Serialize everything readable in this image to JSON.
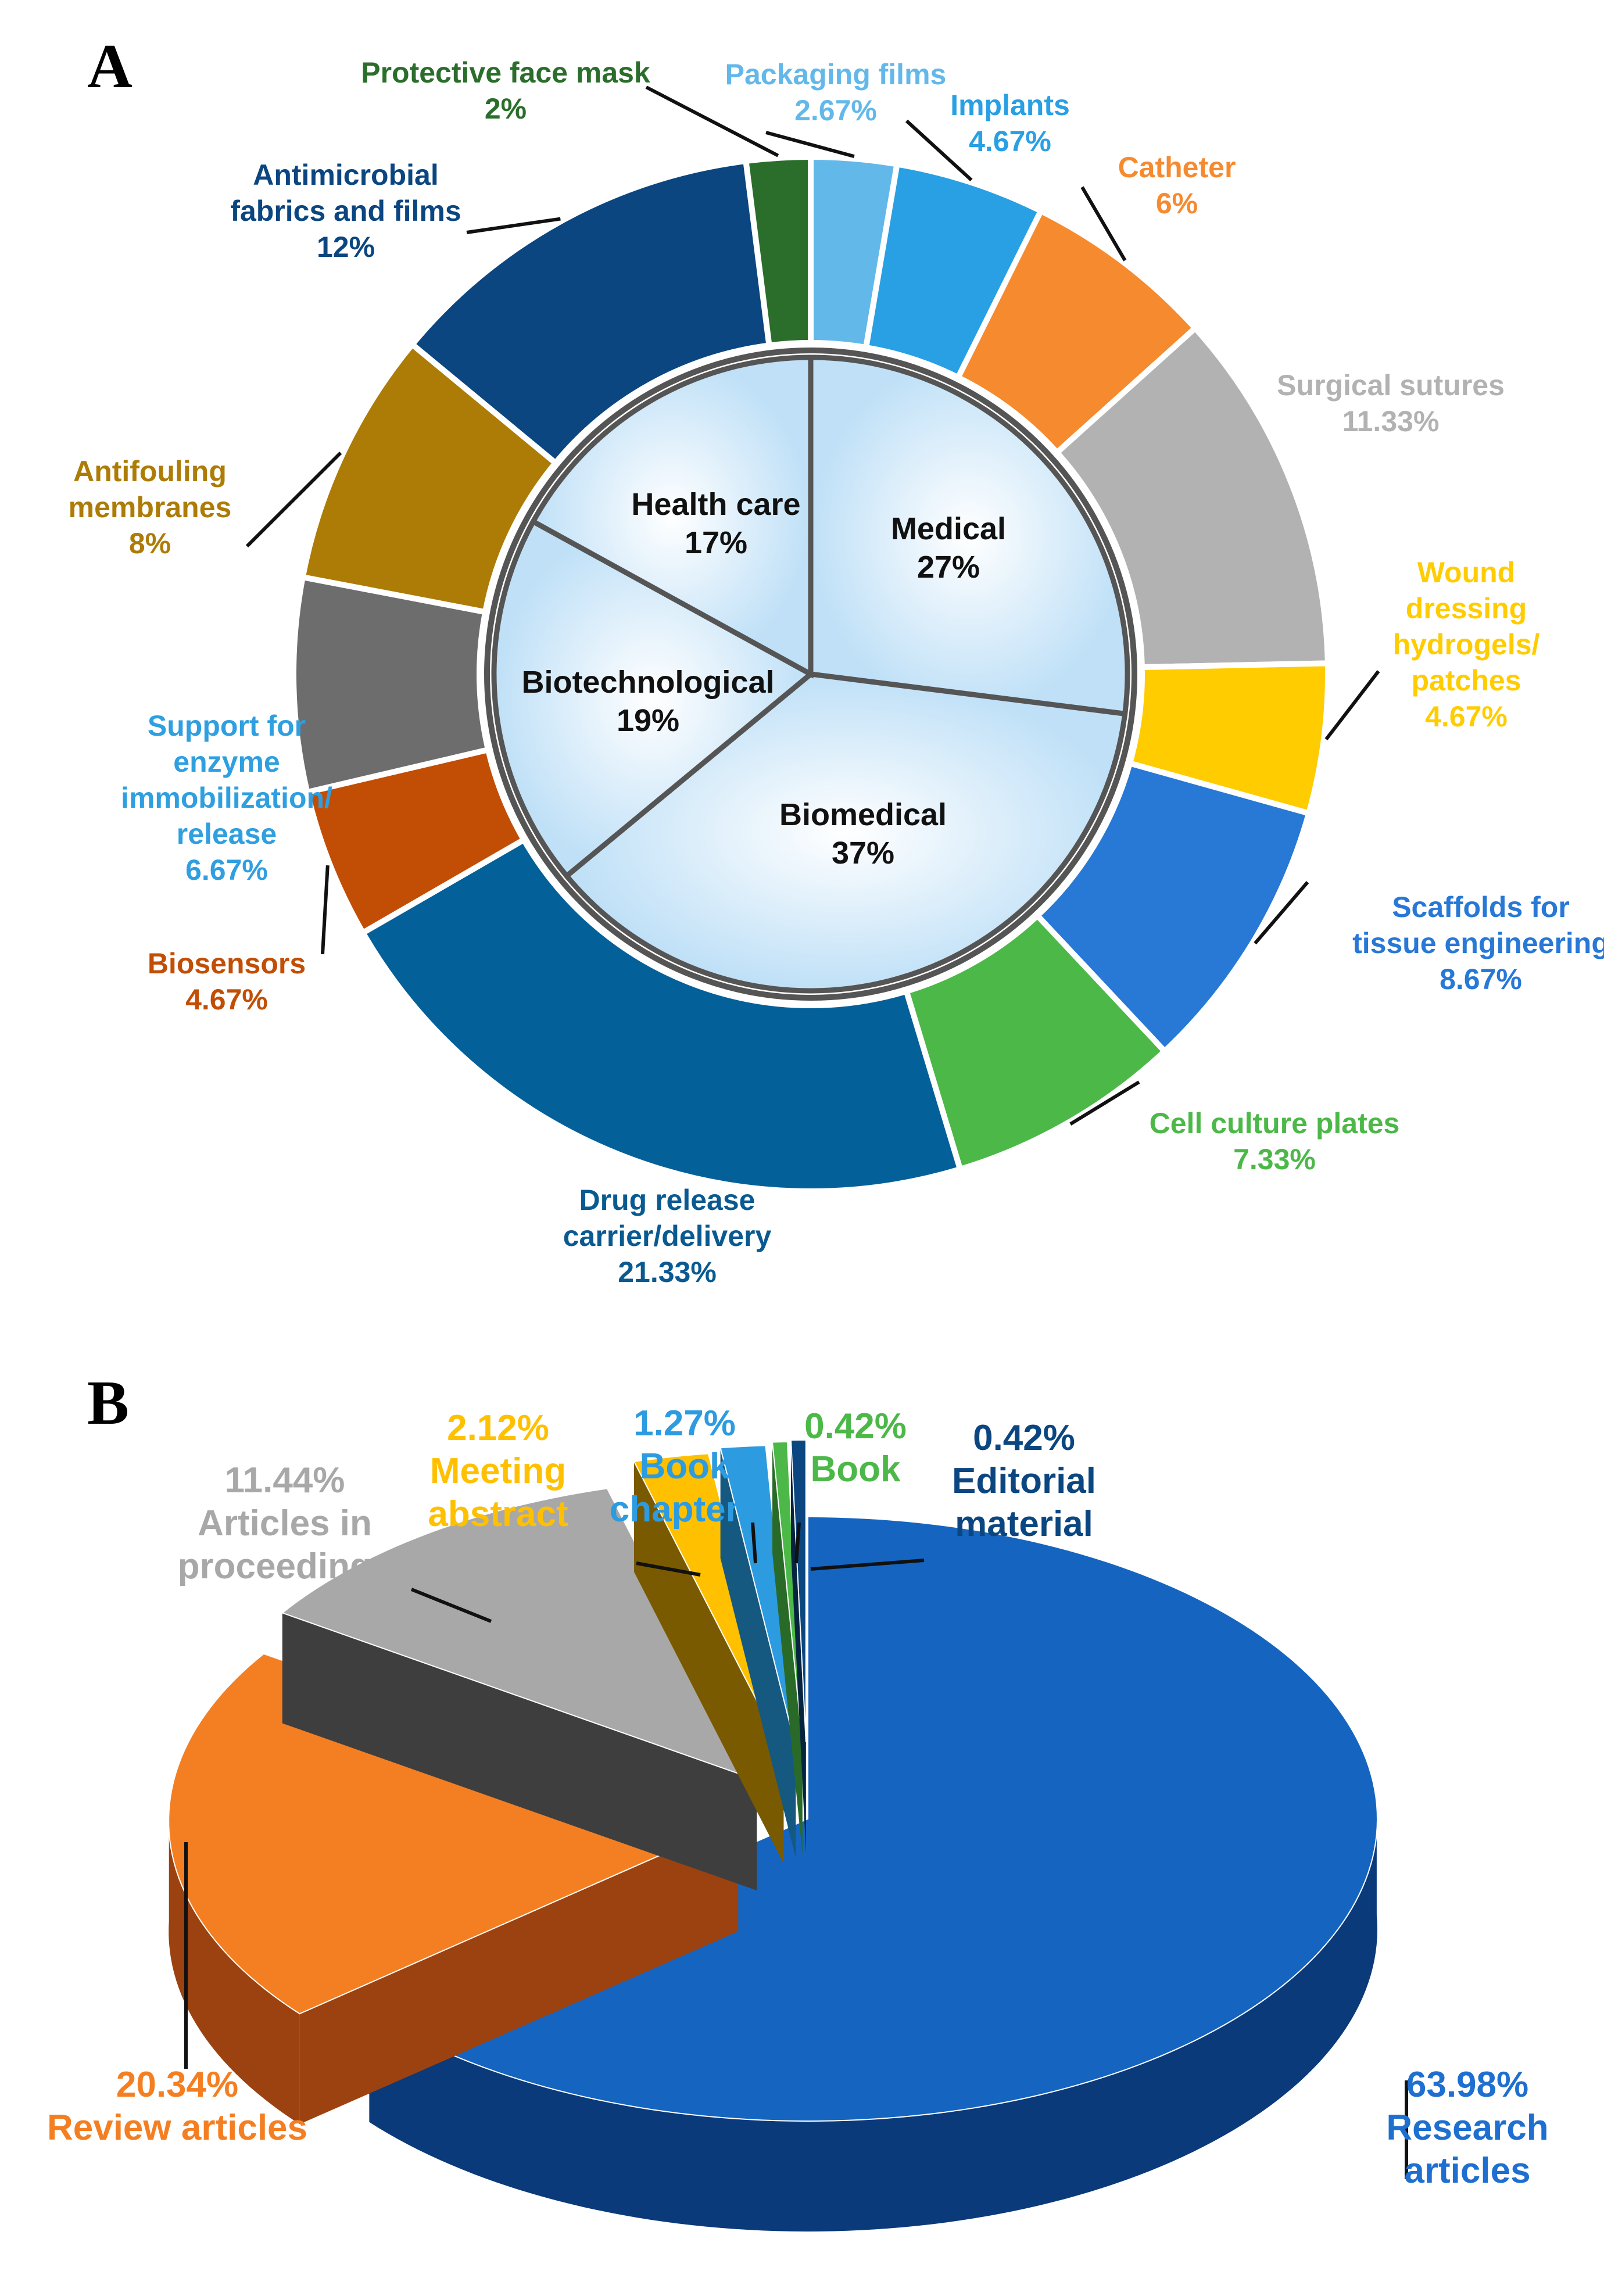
{
  "panels": {
    "a": "A",
    "b": "B"
  },
  "chart_data": [
    {
      "type": "pie",
      "variant": "donut-with-inner-pie",
      "panel": "A",
      "outer": [
        {
          "name": "Packaging films",
          "value": 2.67,
          "label": "2.67%",
          "color": "#63b8ea"
        },
        {
          "name": "Implants",
          "value": 4.67,
          "label": "4.67%",
          "color": "#28a0e3"
        },
        {
          "name": "Catheter",
          "value": 6,
          "label": "6%",
          "color": "#f68a2e"
        },
        {
          "name": "Surgical sutures",
          "value": 11.33,
          "label": "11.33%",
          "color": "#b2b2b2"
        },
        {
          "name": "Wound dressing hydrogels/ patches",
          "value": 4.67,
          "label": "4.67%",
          "color": "#ffcc00"
        },
        {
          "name": "Scaffolds for tissue engineering",
          "value": 8.67,
          "label": "8.67%",
          "color": "#2878d6"
        },
        {
          "name": "Cell culture plates",
          "value": 7.33,
          "label": "7.33%",
          "color": "#4cb848"
        },
        {
          "name": "Drug release carrier/delivery",
          "value": 21.33,
          "label": "21.33%",
          "color": "#046099"
        },
        {
          "name": "Biosensors",
          "value": 4.67,
          "label": "4.67%",
          "color": "#c24e06"
        },
        {
          "name": "Support for enzyme immobilization/ release",
          "value": 6.67,
          "label": "6.67%",
          "color": "#6d6d6d"
        },
        {
          "name": "Antifouling membranes",
          "value": 8,
          "label": "8%",
          "color": "#ad7c06"
        },
        {
          "name": "Antimicrobial fabrics and films",
          "value": 12,
          "label": "12%",
          "color": "#0b4680"
        },
        {
          "name": "Protective face mask",
          "value": 2,
          "label": "2%",
          "color": "#2b6e2b"
        }
      ],
      "inner": [
        {
          "name": "Medical",
          "value": 27,
          "label": "27%"
        },
        {
          "name": "Biomedical",
          "value": 37,
          "label": "37%"
        },
        {
          "name": "Biotechnological",
          "value": 19,
          "label": "19%"
        },
        {
          "name": "Health care",
          "value": 17,
          "label": "17%"
        }
      ],
      "outer_labels": [
        {
          "lines": [
            "Packaging films",
            "2.67%"
          ],
          "color": "#63b8ea"
        },
        {
          "lines": [
            "Implants",
            "4.67%"
          ],
          "color": "#28a0e3"
        },
        {
          "lines": [
            "Catheter",
            "6%"
          ],
          "color": "#f68a2e"
        },
        {
          "lines": [
            "Surgical sutures",
            "11.33%"
          ],
          "color": "#b2b2b2"
        },
        {
          "lines": [
            "Wound",
            "dressing",
            "hydrogels/",
            "patches",
            "4.67%"
          ],
          "color": "#ffcc00"
        },
        {
          "lines": [
            "Scaffolds for",
            "tissue engineering",
            "8.67%"
          ],
          "color": "#2878d6"
        },
        {
          "lines": [
            "Cell culture plates",
            "7.33%"
          ],
          "color": "#4cb848"
        },
        {
          "lines": [
            "Drug release",
            "carrier/delivery",
            "21.33%"
          ],
          "color": "#0a5a92"
        },
        {
          "lines": [
            "Biosensors",
            "4.67%"
          ],
          "color": "#c24e06"
        },
        {
          "lines": [
            "Support for",
            "enzyme",
            "immobilization/",
            "release",
            "6.67%"
          ],
          "color": "#2f9fe0"
        },
        {
          "lines": [
            "Antifouling",
            "membranes",
            "8%"
          ],
          "color": "#ad7c06"
        },
        {
          "lines": [
            "Antimicrobial",
            "fabrics and films",
            "12%"
          ],
          "color": "#0b4680"
        },
        {
          "lines": [
            "Protective face mask",
            "2%"
          ],
          "color": "#2b6e2b"
        }
      ]
    },
    {
      "type": "pie",
      "variant": "3d-exploded",
      "panel": "B",
      "slices": [
        {
          "name": "Research articles",
          "value": 63.98,
          "label": "63.98%",
          "color": "#1565c0",
          "dark": "#0a3a7a",
          "text_color": "#1e6fd0"
        },
        {
          "name": "Review articles",
          "value": 20.34,
          "label": "20.34%",
          "color": "#f47f22",
          "dark": "#9c4210",
          "text_color": "#f47f22"
        },
        {
          "name": "Articles in proceedings",
          "value": 11.44,
          "label": "11.44%",
          "color": "#a8a8a8",
          "dark": "#3e3e3e",
          "text_color": "#a8a8a8"
        },
        {
          "name": "Meeting abstract",
          "value": 2.12,
          "label": "2.12%",
          "color": "#ffc000",
          "dark": "#7a5a00",
          "text_color": "#ffc000"
        },
        {
          "name": "Book chapters",
          "value": 1.27,
          "label": "1.27%",
          "color": "#2d9be0",
          "dark": "#155880",
          "text_color": "#2d9be0"
        },
        {
          "name": "Book",
          "value": 0.42,
          "label": "0.42%",
          "color": "#4cb848",
          "dark": "#2a6a28",
          "text_color": "#4cb848"
        },
        {
          "name": "Editorial material",
          "value": 0.42,
          "label": "0.42%",
          "color": "#0b4680",
          "dark": "#062440",
          "text_color": "#0b4680"
        }
      ],
      "slice_labels": [
        {
          "lines": [
            "63.98%",
            "Research",
            "articles"
          ],
          "color": "#1e6fd0"
        },
        {
          "lines": [
            "20.34%",
            "Review articles"
          ],
          "color": "#f47f22"
        },
        {
          "lines": [
            "11.44%",
            "Articles  in",
            "proceedings"
          ],
          "color": "#a8a8a8"
        },
        {
          "lines": [
            "2.12%",
            "Meeting",
            "abstract"
          ],
          "color": "#ffc000"
        },
        {
          "lines": [
            "1.27%",
            "Book",
            "chapters"
          ],
          "color": "#2d9be0"
        },
        {
          "lines": [
            "0.42%",
            "Book"
          ],
          "color": "#4cb848"
        },
        {
          "lines": [
            "0.42%",
            "Editorial",
            "material"
          ],
          "color": "#0b4680"
        }
      ]
    }
  ]
}
